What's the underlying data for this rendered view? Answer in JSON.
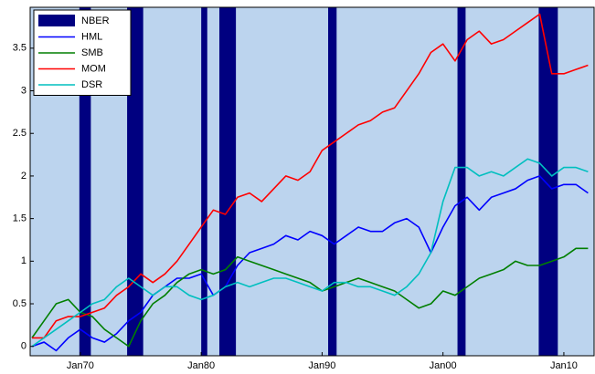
{
  "chart_data": {
    "type": "line",
    "x": [
      1966,
      1967,
      1968,
      1969,
      1970,
      1971,
      1972,
      1973,
      1974,
      1975,
      1976,
      1977,
      1978,
      1979,
      1980,
      1981,
      1982,
      1983,
      1984,
      1985,
      1986,
      1987,
      1988,
      1989,
      1990,
      1991,
      1992,
      1993,
      1994,
      1995,
      1996,
      1997,
      1998,
      1999,
      2000,
      2001,
      2002,
      2003,
      2004,
      2005,
      2006,
      2007,
      2008,
      2009,
      2010,
      2011,
      2012
    ],
    "series": [
      {
        "name": "HML",
        "color": "#0000ff",
        "values": [
          0,
          0.05,
          -0.05,
          0.1,
          0.2,
          0.1,
          0.05,
          0.15,
          0.3,
          0.4,
          0.6,
          0.7,
          0.8,
          0.8,
          0.85,
          0.6,
          0.7,
          0.95,
          1.1,
          1.15,
          1.2,
          1.3,
          1.25,
          1.35,
          1.3,
          1.2,
          1.3,
          1.4,
          1.35,
          1.35,
          1.45,
          1.5,
          1.4,
          1.1,
          1.4,
          1.65,
          1.75,
          1.6,
          1.75,
          1.8,
          1.85,
          1.95,
          2.0,
          1.85,
          1.9,
          1.9,
          1.8
        ]
      },
      {
        "name": "SMB",
        "color": "#007f00",
        "values": [
          0.1,
          0.3,
          0.5,
          0.55,
          0.4,
          0.35,
          0.2,
          0.1,
          0,
          0.3,
          0.5,
          0.6,
          0.75,
          0.85,
          0.9,
          0.85,
          0.9,
          1.05,
          1.0,
          0.95,
          0.9,
          0.85,
          0.8,
          0.75,
          0.65,
          0.7,
          0.75,
          0.8,
          0.75,
          0.7,
          0.65,
          0.55,
          0.45,
          0.5,
          0.65,
          0.6,
          0.7,
          0.8,
          0.85,
          0.9,
          1.0,
          0.95,
          0.95,
          1.0,
          1.05,
          1.15,
          1.15
        ]
      },
      {
        "name": "MOM",
        "color": "#ff0000",
        "values": [
          0.1,
          0.1,
          0.3,
          0.35,
          0.35,
          0.4,
          0.45,
          0.6,
          0.7,
          0.85,
          0.75,
          0.85,
          1.0,
          1.2,
          1.4,
          1.6,
          1.55,
          1.75,
          1.8,
          1.7,
          1.85,
          2.0,
          1.95,
          2.05,
          2.3,
          2.4,
          2.5,
          2.6,
          2.65,
          2.75,
          2.8,
          3.0,
          3.2,
          3.45,
          3.55,
          3.35,
          3.6,
          3.7,
          3.55,
          3.6,
          3.7,
          3.8,
          3.9,
          3.2,
          3.2,
          3.25,
          3.3
        ]
      },
      {
        "name": "DSR",
        "color": "#00bfbf",
        "values": [
          0,
          0.1,
          0.2,
          0.3,
          0.4,
          0.5,
          0.55,
          0.7,
          0.8,
          0.7,
          0.6,
          0.7,
          0.7,
          0.6,
          0.55,
          0.6,
          0.7,
          0.75,
          0.7,
          0.75,
          0.8,
          0.8,
          0.75,
          0.7,
          0.65,
          0.75,
          0.75,
          0.7,
          0.7,
          0.65,
          0.6,
          0.7,
          0.85,
          1.1,
          1.7,
          2.1,
          2.1,
          2.0,
          2.05,
          2.0,
          2.1,
          2.2,
          2.15,
          2.0,
          2.1,
          2.1,
          2.05
        ]
      }
    ],
    "shaded": {
      "name": "NBER",
      "color": "#000080",
      "periods": [
        [
          1969.92,
          1970.87
        ],
        [
          1973.87,
          1975.2
        ],
        [
          1980.0,
          1980.5
        ],
        [
          1981.5,
          1982.87
        ],
        [
          1990.5,
          1991.2
        ],
        [
          2001.2,
          2001.87
        ],
        [
          2007.92,
          2009.5
        ]
      ]
    },
    "background": "#bcd4ee",
    "xlim": [
      1965.85,
      2012.5
    ],
    "xticks": [
      {
        "value": 1970,
        "label": "Jan70"
      },
      {
        "value": 1980,
        "label": "Jan80"
      },
      {
        "value": 1990,
        "label": "Jan90"
      },
      {
        "value": 2000,
        "label": "Jan00"
      },
      {
        "value": 2010,
        "label": "Jan10"
      }
    ],
    "ylim": [
      -0.11,
      3.98
    ],
    "yticks": [
      0,
      0.5,
      1,
      1.5,
      2,
      2.5,
      3,
      3.5
    ],
    "legend": "upper-left"
  }
}
